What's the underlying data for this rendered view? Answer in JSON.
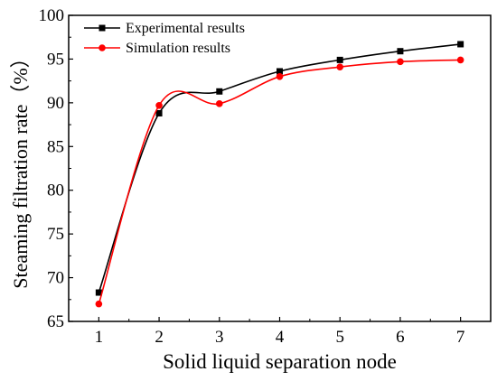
{
  "chart_data": {
    "type": "line",
    "xlabel": "Solid liquid separation node",
    "ylabel": "Steaming filtration rate（%）",
    "x": [
      1,
      2,
      3,
      4,
      5,
      6,
      7
    ],
    "xlim": [
      0.5,
      7.5
    ],
    "ylim": [
      65,
      100
    ],
    "x_ticks": [
      1,
      2,
      3,
      4,
      5,
      6,
      7
    ],
    "y_ticks": [
      65,
      70,
      75,
      80,
      85,
      90,
      95,
      100
    ],
    "grid": false,
    "legend_position": "top-left",
    "series": [
      {
        "name": "Experimental results",
        "color": "#000000",
        "marker": "square",
        "values": [
          68.3,
          88.8,
          91.3,
          93.6,
          94.9,
          95.9,
          96.7
        ]
      },
      {
        "name": "Simulation results",
        "color": "#ff0000",
        "marker": "circle",
        "values": [
          67.0,
          89.7,
          89.9,
          93.0,
          94.1,
          94.7,
          94.9
        ]
      }
    ]
  }
}
